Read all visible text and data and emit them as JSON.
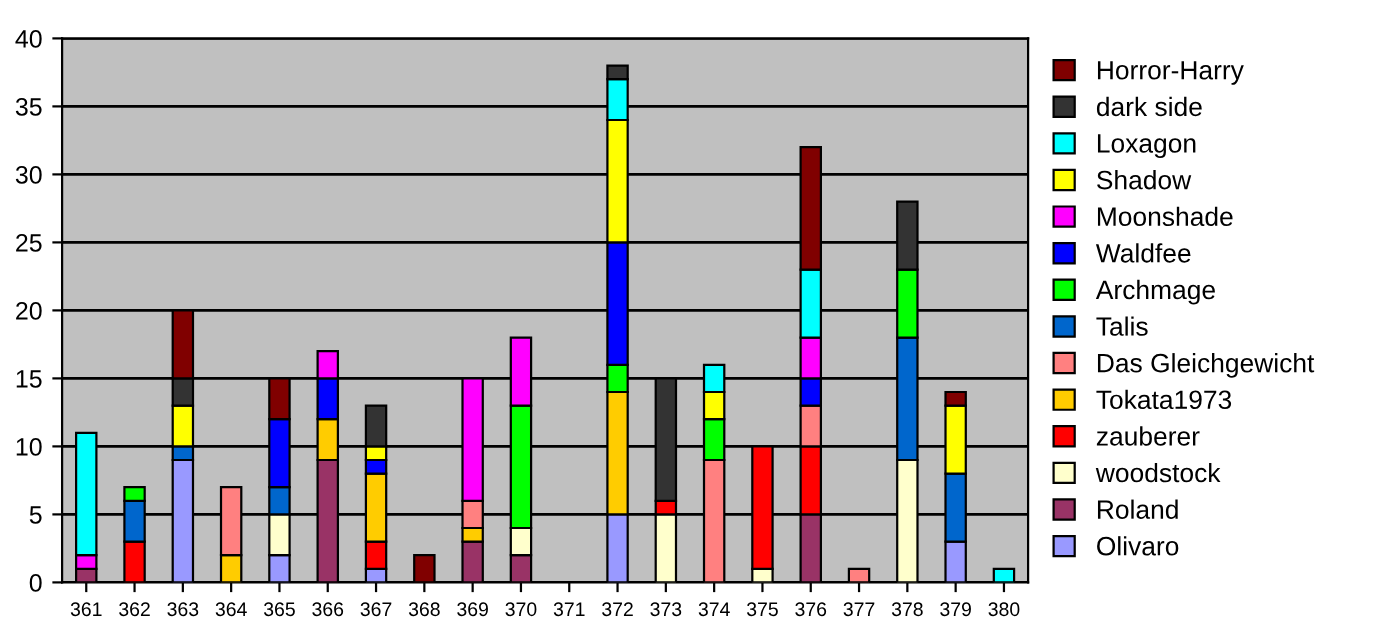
{
  "chart_data": {
    "type": "bar",
    "stacked": true,
    "categories": [
      "361",
      "362",
      "363",
      "364",
      "365",
      "366",
      "367",
      "368",
      "369",
      "370",
      "371",
      "372",
      "373",
      "374",
      "375",
      "376",
      "377",
      "378",
      "379",
      "380"
    ],
    "series": [
      {
        "name": "Olivaro",
        "color": "#9999ff",
        "values": [
          null,
          null,
          9,
          null,
          2,
          null,
          1,
          null,
          null,
          null,
          null,
          5,
          null,
          null,
          null,
          null,
          null,
          null,
          3,
          null
        ]
      },
      {
        "name": "Roland",
        "color": "#993366",
        "values": [
          1,
          null,
          null,
          null,
          null,
          9,
          null,
          null,
          3,
          2,
          null,
          null,
          null,
          null,
          null,
          5,
          null,
          null,
          null,
          null
        ]
      },
      {
        "name": "woodstock",
        "color": "#ffffcc",
        "values": [
          null,
          null,
          null,
          null,
          3,
          null,
          null,
          null,
          null,
          2,
          null,
          null,
          5,
          null,
          1,
          null,
          null,
          9,
          null,
          null
        ]
      },
      {
        "name": "zauberer",
        "color": "#ff0000",
        "values": [
          null,
          3,
          null,
          null,
          null,
          null,
          2,
          null,
          null,
          null,
          null,
          null,
          1,
          null,
          9,
          5,
          null,
          null,
          null,
          null
        ]
      },
      {
        "name": "Tokata1973",
        "color": "#ffcc00",
        "values": [
          null,
          null,
          null,
          2,
          null,
          3,
          5,
          null,
          1,
          null,
          null,
          9,
          null,
          null,
          null,
          null,
          null,
          null,
          null,
          null
        ]
      },
      {
        "name": "Das Gleichgewicht",
        "color": "#ff8080",
        "values": [
          null,
          null,
          null,
          5,
          null,
          null,
          null,
          null,
          2,
          null,
          null,
          null,
          null,
          9,
          null,
          3,
          1,
          null,
          null,
          null
        ]
      },
      {
        "name": "Talis",
        "color": "#0066cc",
        "values": [
          null,
          3,
          1,
          null,
          2,
          null,
          null,
          null,
          null,
          null,
          null,
          null,
          null,
          null,
          null,
          null,
          null,
          9,
          5,
          null
        ]
      },
      {
        "name": "Archmage",
        "color": "#00ff00",
        "values": [
          null,
          1,
          null,
          null,
          null,
          null,
          null,
          null,
          null,
          9,
          null,
          2,
          null,
          3,
          null,
          null,
          null,
          5,
          null,
          null
        ]
      },
      {
        "name": "Waldfee",
        "color": "#0000ff",
        "values": [
          null,
          null,
          null,
          null,
          5,
          3,
          1,
          null,
          null,
          null,
          null,
          9,
          null,
          null,
          null,
          2,
          null,
          null,
          null,
          null
        ]
      },
      {
        "name": "Moonshade",
        "color": "#ff00ff",
        "values": [
          1,
          null,
          null,
          null,
          null,
          2,
          null,
          null,
          9,
          5,
          null,
          null,
          null,
          null,
          null,
          3,
          null,
          null,
          null,
          null
        ]
      },
      {
        "name": "Shadow",
        "color": "#ffff00",
        "values": [
          null,
          null,
          3,
          null,
          null,
          null,
          1,
          null,
          null,
          null,
          null,
          9,
          null,
          2,
          null,
          null,
          null,
          null,
          5,
          null
        ]
      },
      {
        "name": "Loxagon",
        "color": "#00ffff",
        "values": [
          9,
          null,
          null,
          null,
          null,
          null,
          null,
          null,
          null,
          null,
          null,
          3,
          null,
          2,
          null,
          5,
          null,
          null,
          null,
          1
        ]
      },
      {
        "name": "dark side",
        "color": "#333333",
        "values": [
          null,
          null,
          2,
          null,
          null,
          null,
          3,
          null,
          null,
          null,
          null,
          1,
          9,
          null,
          null,
          null,
          null,
          5,
          null,
          null
        ]
      },
      {
        "name": "Horror-Harry",
        "color": "#800000",
        "values": [
          null,
          null,
          5,
          null,
          3,
          null,
          null,
          2,
          null,
          null,
          null,
          null,
          null,
          null,
          null,
          9,
          null,
          null,
          1,
          null
        ]
      }
    ],
    "ylim": [
      0,
      40
    ],
    "yticks": [
      0,
      5,
      10,
      15,
      20,
      25,
      30,
      35,
      40
    ],
    "grid": "y",
    "legend": "right"
  }
}
